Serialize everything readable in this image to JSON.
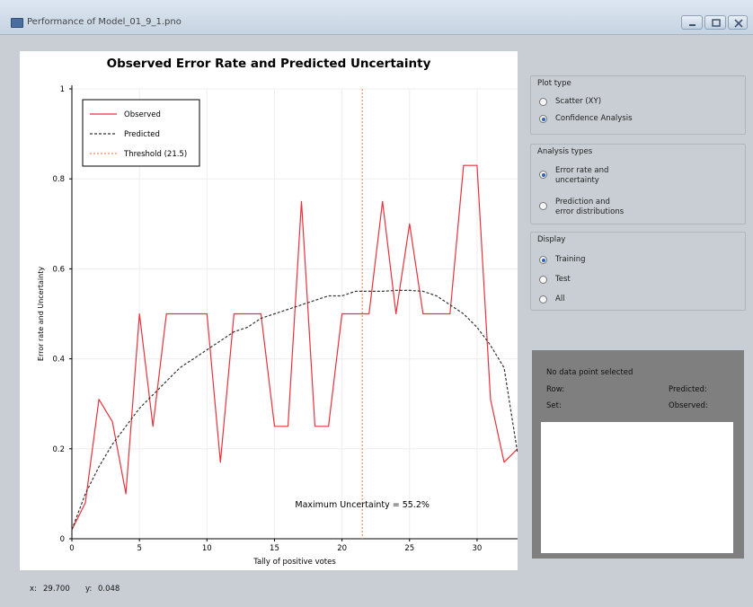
{
  "window": {
    "title": "Performance of Model_01_9_1.pno",
    "icon": "app-icon",
    "buttons": [
      "minimize-icon",
      "maximize-icon",
      "close-icon"
    ]
  },
  "chart_data": {
    "type": "line",
    "title": "Observed Error Rate and Predicted Uncertainty",
    "xlabel": "Tally of positive votes",
    "ylabel": "Error rate and Uncertainty",
    "xlim": [
      0,
      33
    ],
    "ylim": [
      0,
      1
    ],
    "x_ticks": [
      0,
      5,
      10,
      15,
      20,
      25,
      30
    ],
    "y_ticks": [
      0,
      0.2,
      0.4,
      0.6,
      0.8,
      1
    ],
    "y_tick_labels": [
      "0",
      "0.2",
      "0.4",
      "0.6",
      "0.8",
      "1"
    ],
    "grid": true,
    "legend_position": "top-left",
    "series": [
      {
        "name": "Observed",
        "color": "#e8323c",
        "style": "solid",
        "points": [
          [
            0,
            0.02
          ],
          [
            1,
            0.08
          ],
          [
            2,
            0.31
          ],
          [
            3,
            0.26
          ],
          [
            4,
            0.1
          ],
          [
            5,
            0.5
          ],
          [
            6,
            0.25
          ],
          [
            7,
            0.5
          ],
          [
            8,
            0.5
          ],
          [
            9,
            0.5
          ],
          [
            10,
            0.5
          ],
          [
            11,
            0.17
          ],
          [
            12,
            0.5
          ],
          [
            13,
            0.5
          ],
          [
            14,
            0.5
          ],
          [
            15,
            0.25
          ],
          [
            16,
            0.25
          ],
          [
            17,
            0.75
          ],
          [
            18,
            0.25
          ],
          [
            19,
            0.25
          ],
          [
            20,
            0.5
          ],
          [
            21,
            0.5
          ],
          [
            22,
            0.5
          ],
          [
            23,
            0.75
          ],
          [
            24,
            0.5
          ],
          [
            25,
            0.7
          ],
          [
            26,
            0.5
          ],
          [
            27,
            0.5
          ],
          [
            28,
            0.5
          ],
          [
            29,
            0.83
          ],
          [
            30,
            0.83
          ],
          [
            31,
            0.31
          ],
          [
            32,
            0.17
          ],
          [
            33,
            0.2
          ]
        ]
      },
      {
        "name": "Predicted",
        "color": "#333333",
        "style": "dashed",
        "points": [
          [
            0,
            0.02
          ],
          [
            1,
            0.1
          ],
          [
            2,
            0.16
          ],
          [
            3,
            0.21
          ],
          [
            4,
            0.25
          ],
          [
            5,
            0.29
          ],
          [
            6,
            0.32
          ],
          [
            7,
            0.35
          ],
          [
            8,
            0.38
          ],
          [
            9,
            0.4
          ],
          [
            10,
            0.42
          ],
          [
            11,
            0.44
          ],
          [
            12,
            0.46
          ],
          [
            13,
            0.47
          ],
          [
            14,
            0.49
          ],
          [
            15,
            0.5
          ],
          [
            16,
            0.51
          ],
          [
            17,
            0.52
          ],
          [
            18,
            0.53
          ],
          [
            19,
            0.54
          ],
          [
            20,
            0.54
          ],
          [
            21,
            0.55
          ],
          [
            22,
            0.55
          ],
          [
            23,
            0.55
          ],
          [
            24,
            0.552
          ],
          [
            25,
            0.552
          ],
          [
            26,
            0.55
          ],
          [
            27,
            0.54
          ],
          [
            28,
            0.52
          ],
          [
            29,
            0.5
          ],
          [
            30,
            0.47
          ],
          [
            31,
            0.43
          ],
          [
            32,
            0.38
          ],
          [
            33,
            0.19
          ]
        ]
      }
    ],
    "threshold": {
      "name": "Threshold (21.5)",
      "x": 21.5,
      "color": "#f28a5b",
      "style": "dotted"
    },
    "annotation": {
      "text": "Maximum Uncertainty = 55.2%",
      "x": 21.5,
      "y": 0.07
    }
  },
  "sidebar": {
    "plot_type": {
      "title": "Plot type",
      "options": [
        {
          "label": "Scatter (XY)",
          "selected": false
        },
        {
          "label": "Confidence Analysis",
          "selected": true
        }
      ]
    },
    "analysis_types": {
      "title": "Analysis types",
      "options": [
        {
          "line1": "Error rate and",
          "line2": "uncertainty",
          "selected": true
        },
        {
          "line1": "Prediction and",
          "line2": "error distributions",
          "selected": false
        }
      ]
    },
    "display": {
      "title": "Display",
      "options": [
        {
          "label": "Training",
          "selected": true
        },
        {
          "label": "Test",
          "selected": false
        },
        {
          "label": "All",
          "selected": false
        }
      ]
    }
  },
  "info": {
    "status": "No data point selected",
    "row_label": "Row:",
    "set_label": "Set:",
    "predicted_label": "Predicted:",
    "observed_label": "Observed:"
  },
  "statusbar": {
    "x_label": "x:",
    "x_value": "29.700",
    "y_label": "y:",
    "y_value": "0.048"
  }
}
